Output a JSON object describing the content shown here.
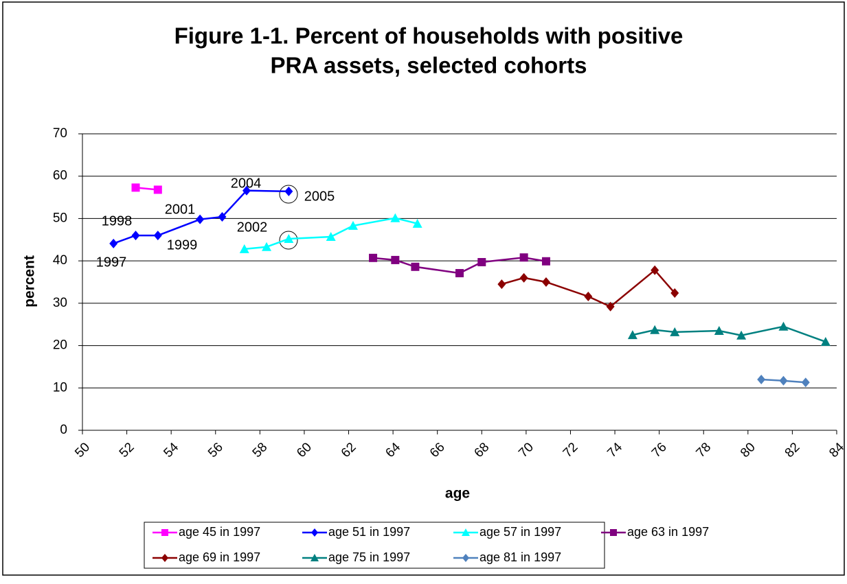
{
  "chart_data": {
    "type": "line",
    "title": [
      "Figure 1-1. Percent of households with positive",
      "PRA assets, selected cohorts"
    ],
    "x_label": "age",
    "y_label": "percent",
    "xlim": [
      50,
      84
    ],
    "xticks": [
      50,
      52,
      54,
      56,
      58,
      60,
      62,
      64,
      66,
      68,
      70,
      72,
      74,
      76,
      78,
      80,
      82,
      84
    ],
    "ylim": [
      0,
      70
    ],
    "yticks": [
      0,
      10,
      20,
      30,
      40,
      50,
      60,
      70
    ],
    "grid": true,
    "series": [
      {
        "name": "age 45 in 1997",
        "color": "#ff00ff",
        "marker": "square",
        "x": [
          52.4,
          53.4
        ],
        "values": [
          57.3,
          56.8
        ]
      },
      {
        "name": "age 51 in 1997",
        "color": "#0000ff",
        "marker": "diamond",
        "x": [
          51.4,
          52.4,
          53.4,
          55.3,
          56.3,
          57.4,
          59.3
        ],
        "values": [
          44.1,
          46.0,
          46.0,
          49.8,
          50.4,
          56.6,
          56.4
        ]
      },
      {
        "name": "age 57 in 1997",
        "color": "#00ffff",
        "marker": "triangle",
        "x": [
          57.3,
          58.3,
          59.3,
          61.2,
          62.2,
          64.1,
          65.1
        ],
        "values": [
          42.8,
          43.3,
          45.2,
          45.7,
          48.3,
          50.1,
          48.8
        ]
      },
      {
        "name": "age 63 in 1997",
        "color": "#800080",
        "marker": "square",
        "x": [
          63.1,
          64.1,
          65.0,
          67.0,
          68.0,
          69.9,
          70.9
        ],
        "values": [
          40.7,
          40.2,
          38.6,
          37.1,
          39.7,
          40.8,
          39.9
        ]
      },
      {
        "name": "age 69 in 1997",
        "color": "#8b0000",
        "marker": "diamond",
        "x": [
          68.9,
          69.9,
          70.9,
          72.8,
          73.8,
          75.8,
          76.7
        ],
        "values": [
          34.5,
          36.0,
          35.0,
          31.6,
          29.2,
          37.8,
          32.4
        ]
      },
      {
        "name": "age 75 in 1997",
        "color": "#008080",
        "marker": "triangle",
        "x": [
          74.8,
          75.8,
          76.7,
          78.7,
          79.7,
          81.6,
          83.5
        ],
        "values": [
          22.5,
          23.7,
          23.2,
          23.5,
          22.4,
          24.5,
          20.9
        ]
      },
      {
        "name": "age 81 in 1997",
        "color": "#4f81bd",
        "marker": "diamond",
        "x": [
          80.6,
          81.6,
          82.6
        ],
        "values": [
          12.0,
          11.7,
          11.3
        ]
      }
    ],
    "annotations": [
      "1997",
      "1998",
      "1999",
      "2001",
      "2002",
      "2004",
      "2005"
    ]
  }
}
